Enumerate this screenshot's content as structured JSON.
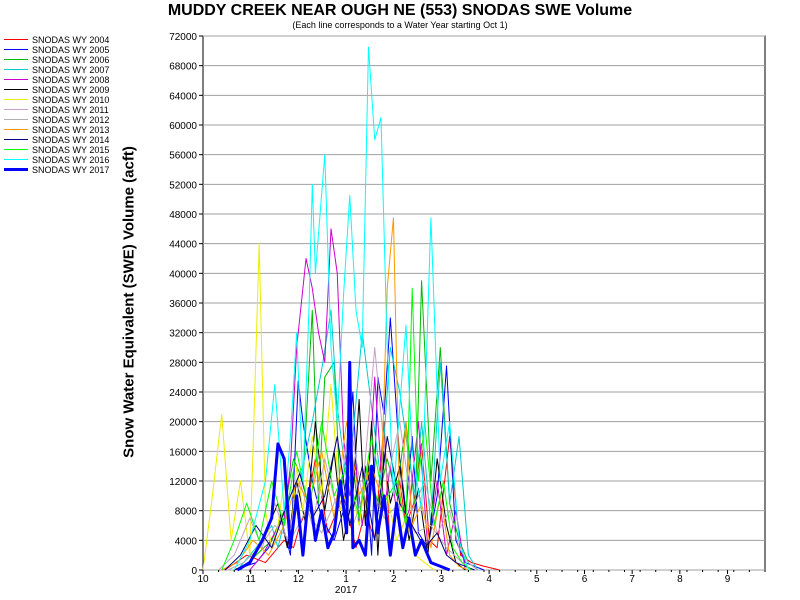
{
  "chart_data": {
    "type": "line",
    "title": "MUDDY CREEK NEAR OUGH NE (553) SNODAS SWE Volume",
    "subtitle": "(Each line corresponds to a Water Year starting Oct 1)",
    "ylabel": "Snow Water Equivalent (SWE) Volume (acft)",
    "xlabel": "",
    "year_label": "2017",
    "ylim": [
      0,
      72000
    ],
    "y_ticks": [
      0,
      4000,
      8000,
      12000,
      16000,
      20000,
      24000,
      28000,
      32000,
      36000,
      40000,
      44000,
      48000,
      52000,
      56000,
      60000,
      64000,
      68000,
      72000
    ],
    "x_ticks": [
      "10",
      "11",
      "12",
      "1",
      "2",
      "3",
      "4",
      "5",
      "6",
      "7",
      "8",
      "9"
    ],
    "grid": "horizontal",
    "legend_position": "left",
    "series": [
      {
        "name": "SNODAS WY 2004",
        "color": "#ff0000",
        "width": 1,
        "x": [
          14,
          28,
          40,
          52,
          58,
          62,
          66,
          72,
          80,
          90,
          98,
          104,
          110,
          116,
          120,
          126,
          130,
          135,
          140,
          145,
          150,
          158,
          165,
          172,
          180,
          190
        ],
        "y": [
          0,
          2000,
          1000,
          4000,
          3000,
          6000,
          8000,
          15000,
          5000,
          10000,
          3000,
          8000,
          4000,
          20000,
          2000,
          12000,
          6000,
          9000,
          17000,
          4000,
          3000,
          18000,
          2000,
          1000,
          500,
          0
        ]
      },
      {
        "name": "SNODAS WY 2005",
        "color": "#0000ff",
        "width": 1,
        "x": [
          20,
          34,
          42,
          50,
          56,
          61,
          64,
          70,
          76,
          84,
          90,
          96,
          100,
          104,
          108,
          112,
          116,
          120,
          126,
          130,
          134,
          138,
          144,
          150,
          156,
          162,
          168,
          174,
          180
        ],
        "y": [
          0,
          1000,
          3000,
          7000,
          2000,
          25500,
          20000,
          12000,
          7000,
          4000,
          8000,
          24000,
          6000,
          14000,
          2000,
          26000,
          21000,
          34000,
          15000,
          8000,
          18000,
          5000,
          3000,
          10000,
          27500,
          4000,
          1000,
          500,
          0
        ]
      },
      {
        "name": "SNODAS WY 2006",
        "color": "#00bb00",
        "width": 1,
        "x": [
          24,
          34,
          44,
          52,
          58,
          64,
          70,
          74,
          78,
          84,
          88,
          94,
          100,
          106,
          112,
          118,
          124,
          130,
          136,
          140,
          146,
          152,
          158,
          164,
          170,
          176
        ],
        "y": [
          0,
          2000,
          4000,
          8000,
          15000,
          12000,
          35000,
          9000,
          26000,
          28000,
          10000,
          18000,
          7000,
          14000,
          9000,
          15000,
          10000,
          20000,
          8000,
          39000,
          12000,
          30000,
          9000,
          4000,
          1000,
          0
        ]
      },
      {
        "name": "SNODAS WY 2007",
        "color": "#00cccc",
        "width": 1,
        "x": [
          22,
          34,
          44,
          48,
          56,
          64,
          70,
          76,
          82,
          86,
          92,
          96,
          102,
          108,
          114,
          120,
          126,
          132,
          136,
          140,
          146,
          152,
          158,
          164,
          170,
          176
        ],
        "y": [
          0,
          3000,
          6000,
          3000,
          10000,
          14000,
          20000,
          27000,
          35000,
          22000,
          12000,
          18000,
          32000,
          22000,
          12000,
          30000,
          24000,
          15000,
          10000,
          20000,
          6000,
          28000,
          9000,
          18000,
          2000,
          0
        ]
      },
      {
        "name": "SNODAS WY 2008",
        "color": "#cc00cc",
        "width": 1,
        "x": [
          30,
          38,
          46,
          52,
          56,
          60,
          66,
          70,
          74,
          78,
          82,
          86,
          90,
          94,
          98,
          102,
          106,
          110,
          116,
          120,
          126,
          132,
          138,
          144,
          150,
          156,
          162,
          168
        ],
        "y": [
          0,
          2000,
          5000,
          7000,
          14000,
          30000,
          42000,
          38000,
          32000,
          28000,
          46000,
          40000,
          18000,
          10000,
          14000,
          6000,
          12000,
          26000,
          8000,
          14000,
          5000,
          8000,
          20000,
          3000,
          12000,
          2000,
          8000,
          0
        ]
      },
      {
        "name": "SNODAS WY 2009",
        "color": "#000000",
        "width": 1,
        "x": [
          20,
          30,
          40,
          48,
          54,
          60,
          66,
          72,
          78,
          84,
          90,
          96,
          100,
          104,
          108,
          112,
          116,
          120,
          126,
          132,
          138,
          144,
          150,
          156,
          162,
          168
        ],
        "y": [
          0,
          1000,
          5000,
          9000,
          3000,
          12000,
          6000,
          20000,
          8000,
          16000,
          4000,
          10000,
          23000,
          6000,
          20000,
          2000,
          16000,
          9000,
          14000,
          4000,
          11000,
          2000,
          15000,
          6000,
          1000,
          0
        ]
      },
      {
        "name": "SNODAS WY 2010",
        "color": "#eeee00",
        "width": 1,
        "x": [
          0,
          6,
          12,
          18,
          24,
          30,
          36,
          40,
          44,
          48,
          52,
          56,
          60,
          64,
          70,
          76,
          82,
          88,
          94,
          100,
          106,
          112,
          118,
          124,
          130,
          136,
          142,
          148
        ],
        "y": [
          0,
          10000,
          21000,
          4000,
          12000,
          2000,
          44000,
          8000,
          3000,
          6000,
          12000,
          4000,
          14000,
          8000,
          18000,
          10000,
          25000,
          8000,
          12000,
          6000,
          15000,
          8000,
          10000,
          4000,
          7000,
          2000,
          1000,
          0
        ]
      },
      {
        "name": "SNODAS WY 2011",
        "color": "#c8a0c8",
        "width": 1,
        "x": [
          10,
          20,
          30,
          38,
          46,
          54,
          62,
          70,
          78,
          86,
          94,
          102,
          110,
          118,
          126,
          134,
          142,
          150,
          158,
          164,
          170,
          176
        ],
        "y": [
          0,
          2000,
          7000,
          3000,
          9000,
          4000,
          12000,
          6000,
          15000,
          8000,
          20000,
          10000,
          30000,
          12000,
          20000,
          8000,
          12000,
          5000,
          8000,
          3000,
          1000,
          0
        ]
      },
      {
        "name": "SNODAS WY 2012",
        "color": "#b0b0b0",
        "width": 1,
        "x": [
          16,
          26,
          36,
          46,
          56,
          66,
          76,
          86,
          96,
          106,
          116,
          126,
          136,
          146,
          156,
          166,
          172
        ],
        "y": [
          0,
          1000,
          3000,
          6000,
          4000,
          8000,
          5000,
          10000,
          6000,
          12000,
          7000,
          9000,
          5000,
          6000,
          3000,
          1000,
          0
        ]
      },
      {
        "name": "SNODAS WY 2013",
        "color": "#ff9900",
        "width": 1,
        "x": [
          12,
          22,
          32,
          42,
          52,
          60,
          68,
          76,
          84,
          92,
          100,
          108,
          114,
          118,
          122,
          126,
          130,
          134,
          140,
          146,
          152,
          158,
          164,
          170
        ],
        "y": [
          0,
          1000,
          4000,
          2000,
          6000,
          12000,
          9000,
          16000,
          7000,
          20000,
          10000,
          14000,
          10000,
          38000,
          47500,
          8000,
          20000,
          6000,
          9000,
          3000,
          10000,
          2000,
          500,
          0
        ]
      },
      {
        "name": "SNODAS WY 2014",
        "color": "#000080",
        "width": 1,
        "x": [
          14,
          24,
          34,
          44,
          54,
          62,
          70,
          78,
          86,
          94,
          102,
          110,
          118,
          126,
          134,
          142,
          150,
          156,
          162,
          168,
          174
        ],
        "y": [
          0,
          2000,
          6000,
          3000,
          9000,
          13000,
          7000,
          10000,
          18000,
          6000,
          14000,
          4000,
          18000,
          9000,
          6000,
          3000,
          5000,
          2000,
          1000,
          500,
          0
        ]
      },
      {
        "name": "SNODAS WY 2015",
        "color": "#00ff00",
        "width": 1,
        "x": [
          12,
          20,
          28,
          36,
          44,
          52,
          60,
          68,
          76,
          84,
          92,
          100,
          108,
          116,
          124,
          130,
          134,
          138,
          142,
          148,
          154,
          160,
          166,
          172
        ],
        "y": [
          0,
          4000,
          9000,
          4000,
          12000,
          6000,
          16000,
          8000,
          20000,
          10000,
          14000,
          7000,
          18000,
          9000,
          12000,
          6000,
          38000,
          12000,
          20000,
          6000,
          12000,
          3000,
          1000,
          0
        ]
      },
      {
        "name": "SNODAS WY 2016",
        "color": "#00ffff",
        "width": 1,
        "x": [
          20,
          30,
          40,
          46,
          52,
          56,
          60,
          64,
          68,
          70,
          72,
          78,
          82,
          86,
          90,
          94,
          98,
          102,
          106,
          110,
          114,
          118,
          122,
          126,
          130,
          134,
          140,
          146,
          152,
          158,
          164,
          170
        ],
        "y": [
          0,
          4000,
          12000,
          25000,
          8000,
          18000,
          32000,
          12000,
          36000,
          52000,
          40000,
          56000,
          30000,
          20000,
          37000,
          50500,
          35000,
          30000,
          70500,
          58000,
          61000,
          30000,
          10000,
          22000,
          33000,
          16000,
          8000,
          47500,
          12000,
          20000,
          4000,
          0
        ]
      },
      {
        "name": "SNODAS WY 2017",
        "color": "#0000ff",
        "width": 3,
        "x": [
          22,
          30,
          38,
          44,
          48,
          52,
          56,
          60,
          64,
          68,
          72,
          76,
          80,
          84,
          88,
          92,
          94,
          96,
          100,
          104,
          108,
          112,
          116,
          120,
          124,
          128,
          132,
          136,
          140,
          146,
          152,
          158
        ],
        "y": [
          0,
          1000,
          4000,
          7000,
          17000,
          15000,
          3000,
          10000,
          2000,
          11000,
          4000,
          8000,
          3000,
          5000,
          12000,
          5000,
          28000,
          3000,
          4000,
          2000,
          14000,
          5000,
          10000,
          2000,
          9000,
          3000,
          7000,
          2000,
          4000,
          1000,
          500,
          0
        ]
      }
    ]
  }
}
